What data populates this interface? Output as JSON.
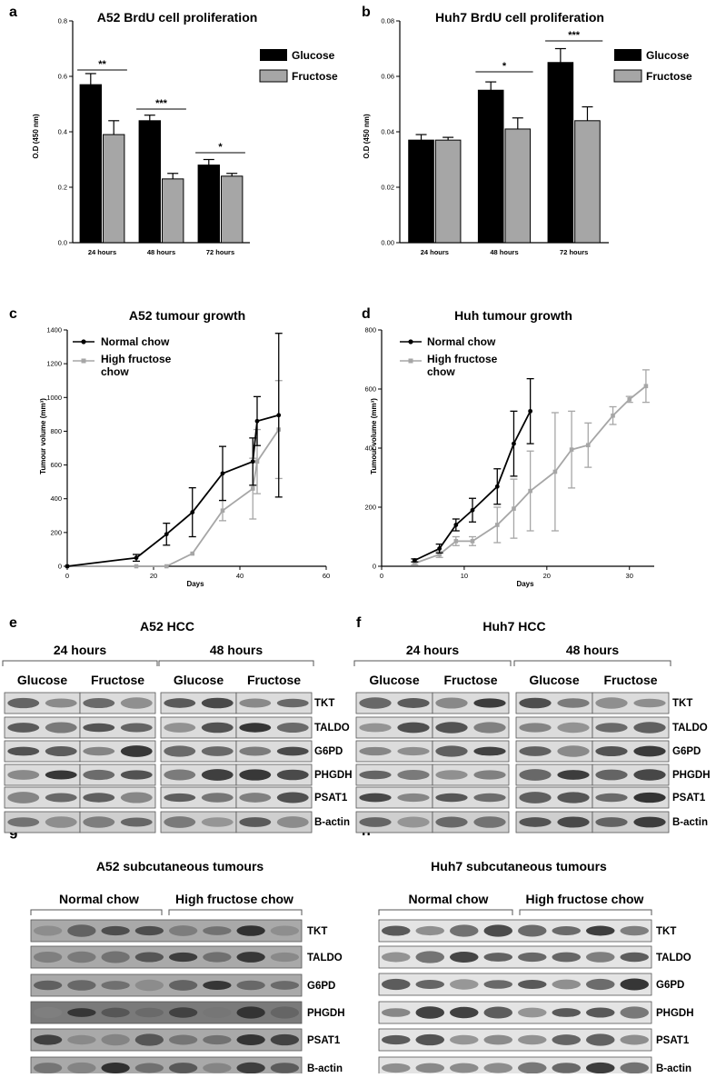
{
  "panel_letters": {
    "a": "a",
    "b": "b",
    "c": "c",
    "d": "d",
    "e": "e",
    "f": "f",
    "g": "g",
    "h": "h"
  },
  "bar_legend": [
    "Glucose",
    "Fructose"
  ],
  "line_legend": [
    "Normal chow",
    "High fructose",
    "chow"
  ],
  "chart_data": [
    {
      "panel": "a",
      "type": "bar",
      "title": "A52 BrdU cell proliferation",
      "ylabel": "O.D (450 nm)",
      "xlabel": "",
      "categories": [
        "24 hours",
        "48 hours",
        "72 hours"
      ],
      "ylim": [
        0,
        0.8
      ],
      "yticks": [
        "0.0",
        "0.2",
        "0.4",
        "0.6",
        "0.8"
      ],
      "series": [
        {
          "name": "Glucose",
          "values": [
            0.57,
            0.44,
            0.28
          ],
          "errors": [
            0.04,
            0.02,
            0.02
          ],
          "color": "#000000"
        },
        {
          "name": "Fructose",
          "values": [
            0.39,
            0.23,
            0.24
          ],
          "errors": [
            0.05,
            0.02,
            0.01
          ],
          "color": "#a6a6a6"
        }
      ],
      "significance": [
        "**",
        "***",
        "*"
      ],
      "grid": false,
      "legend": "top-right"
    },
    {
      "panel": "b",
      "type": "bar",
      "title": "Huh7 BrdU cell proliferation",
      "ylabel": "O.D (450 nm)",
      "xlabel": "",
      "categories": [
        "24 hours",
        "48 hours",
        "72 hours"
      ],
      "ylim": [
        0,
        0.08
      ],
      "yticks": [
        "0.00",
        "0.02",
        "0.04",
        "0.06",
        "0.08"
      ],
      "series": [
        {
          "name": "Glucose",
          "values": [
            0.037,
            0.055,
            0.065
          ],
          "errors": [
            0.002,
            0.003,
            0.005
          ],
          "color": "#000000"
        },
        {
          "name": "Fructose",
          "values": [
            0.037,
            0.041,
            0.044
          ],
          "errors": [
            0.001,
            0.004,
            0.005
          ],
          "color": "#a6a6a6"
        }
      ],
      "significance": [
        "",
        "*",
        "***"
      ],
      "grid": false,
      "legend": "top-right"
    },
    {
      "panel": "c",
      "type": "line",
      "title": "A52 tumour growth",
      "xlabel": "Days",
      "ylabel": "Tumour volume (mm³)",
      "xlim": [
        0,
        60
      ],
      "ylim": [
        0,
        1400
      ],
      "xticks": [
        "0",
        "20",
        "40",
        "60"
      ],
      "yticks": [
        "0",
        "200",
        "400",
        "600",
        "800",
        "1000",
        "1200",
        "1400"
      ],
      "series": [
        {
          "name": "Normal chow",
          "color": "#000000",
          "x": [
            0,
            16,
            23,
            29,
            36,
            43,
            44,
            49
          ],
          "y": [
            0,
            50,
            190,
            320,
            550,
            620,
            860,
            895
          ],
          "err": [
            0,
            20,
            65,
            145,
            160,
            140,
            145,
            485
          ]
        },
        {
          "name": "High fructose chow",
          "color": "#a6a6a6",
          "x": [
            0,
            16,
            23,
            29,
            36,
            43,
            44,
            49
          ],
          "y": [
            0,
            0,
            0,
            75,
            330,
            460,
            620,
            810
          ],
          "err": [
            0,
            0,
            0,
            0,
            60,
            180,
            190,
            290
          ]
        }
      ],
      "grid": false,
      "legend": "top-left"
    },
    {
      "panel": "d",
      "type": "line",
      "title": "Huh tumour growth",
      "xlabel": "Days",
      "ylabel": "Tumour volume (mm³)",
      "xlim": [
        0,
        33
      ],
      "ylim": [
        0,
        800
      ],
      "xticks": [
        "0",
        "10",
        "20",
        "30"
      ],
      "yticks": [
        "0",
        "200",
        "400",
        "600",
        "800"
      ],
      "series": [
        {
          "name": "Normal chow",
          "color": "#000000",
          "x": [
            4,
            7,
            9,
            11,
            14,
            16,
            18
          ],
          "y": [
            20,
            60,
            140,
            190,
            270,
            415,
            525
          ],
          "err": [
            5,
            15,
            20,
            40,
            60,
            110,
            110
          ]
        },
        {
          "name": "High fructose chow",
          "color": "#a6a6a6",
          "x": [
            4,
            7,
            9,
            11,
            14,
            16,
            18,
            21,
            23,
            25,
            28,
            30,
            32
          ],
          "y": [
            10,
            40,
            85,
            85,
            140,
            195,
            255,
            320,
            395,
            410,
            510,
            565,
            610
          ],
          "err": [
            5,
            10,
            15,
            15,
            60,
            100,
            135,
            200,
            130,
            75,
            30,
            10,
            55
          ]
        }
      ],
      "grid": false,
      "legend": "top-left"
    }
  ],
  "blots": {
    "e": {
      "title": "A52 HCC",
      "times": [
        "24 hours",
        "48 hours"
      ],
      "conditions": [
        "Glucose",
        "Fructose",
        "Glucose",
        "Fructose"
      ],
      "proteins": [
        "TKT",
        "TALDO",
        "G6PD",
        "PHGDH",
        "PSAT1",
        "B-actin"
      ]
    },
    "f": {
      "title": "Huh7 HCC",
      "times": [
        "24 hours",
        "48 hours"
      ],
      "conditions": [
        "Glucose",
        "Fructose",
        "Glucose",
        "Fructose"
      ],
      "proteins": [
        "TKT",
        "TALDO",
        "G6PD",
        "PHGDH",
        "PSAT1",
        "B-actin"
      ]
    },
    "g": {
      "title": "A52 subcutaneous tumours",
      "groups": [
        "Normal chow",
        "High fructose chow"
      ],
      "proteins": [
        "TKT",
        "TALDO",
        "G6PD",
        "PHGDH",
        "PSAT1",
        "B-actin"
      ]
    },
    "h": {
      "title": "Huh7 subcutaneous tumours",
      "groups": [
        "Normal chow",
        "High fructose chow"
      ],
      "proteins": [
        "TKT",
        "TALDO",
        "G6PD",
        "PHGDH",
        "PSAT1",
        "B-actin"
      ]
    }
  }
}
